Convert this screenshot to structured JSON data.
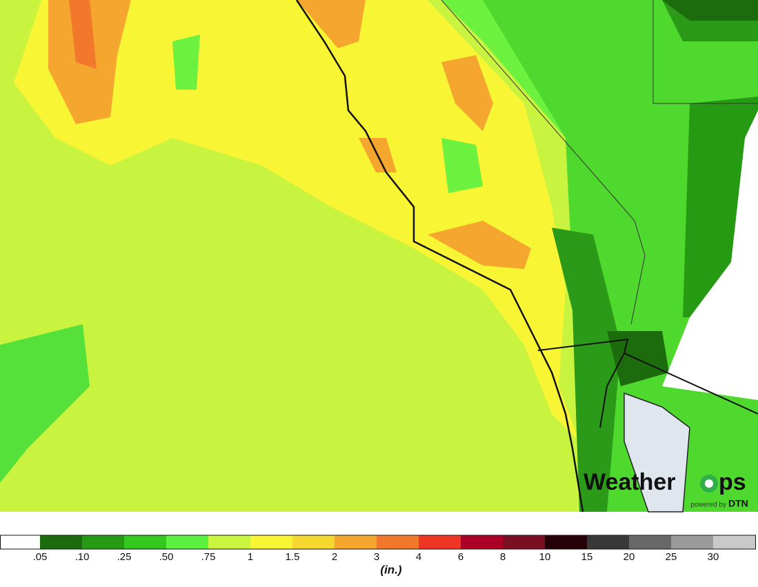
{
  "legend": {
    "labels": [
      ".05",
      ".10",
      ".25",
      ".50",
      ".75",
      "1",
      "1.5",
      "2",
      "3",
      "4",
      "6",
      "8",
      "10",
      "15",
      "20",
      "25",
      "30"
    ],
    "colors": [
      "#ffffff",
      "#1c6b0c",
      "#269a12",
      "#34c81e",
      "#5cf040",
      "#c9f53f",
      "#f8f534",
      "#f7d831",
      "#f4a62e",
      "#f2782c",
      "#ef3524",
      "#ac0025",
      "#7a0f22",
      "#250008",
      "#383838",
      "#686868",
      "#9b9b9b",
      "#c9c9c9"
    ],
    "unit": "(in.)"
  },
  "logo": {
    "left": "Weather",
    "right": "ps",
    "tagline": "powered by",
    "brand": "DTN"
  }
}
